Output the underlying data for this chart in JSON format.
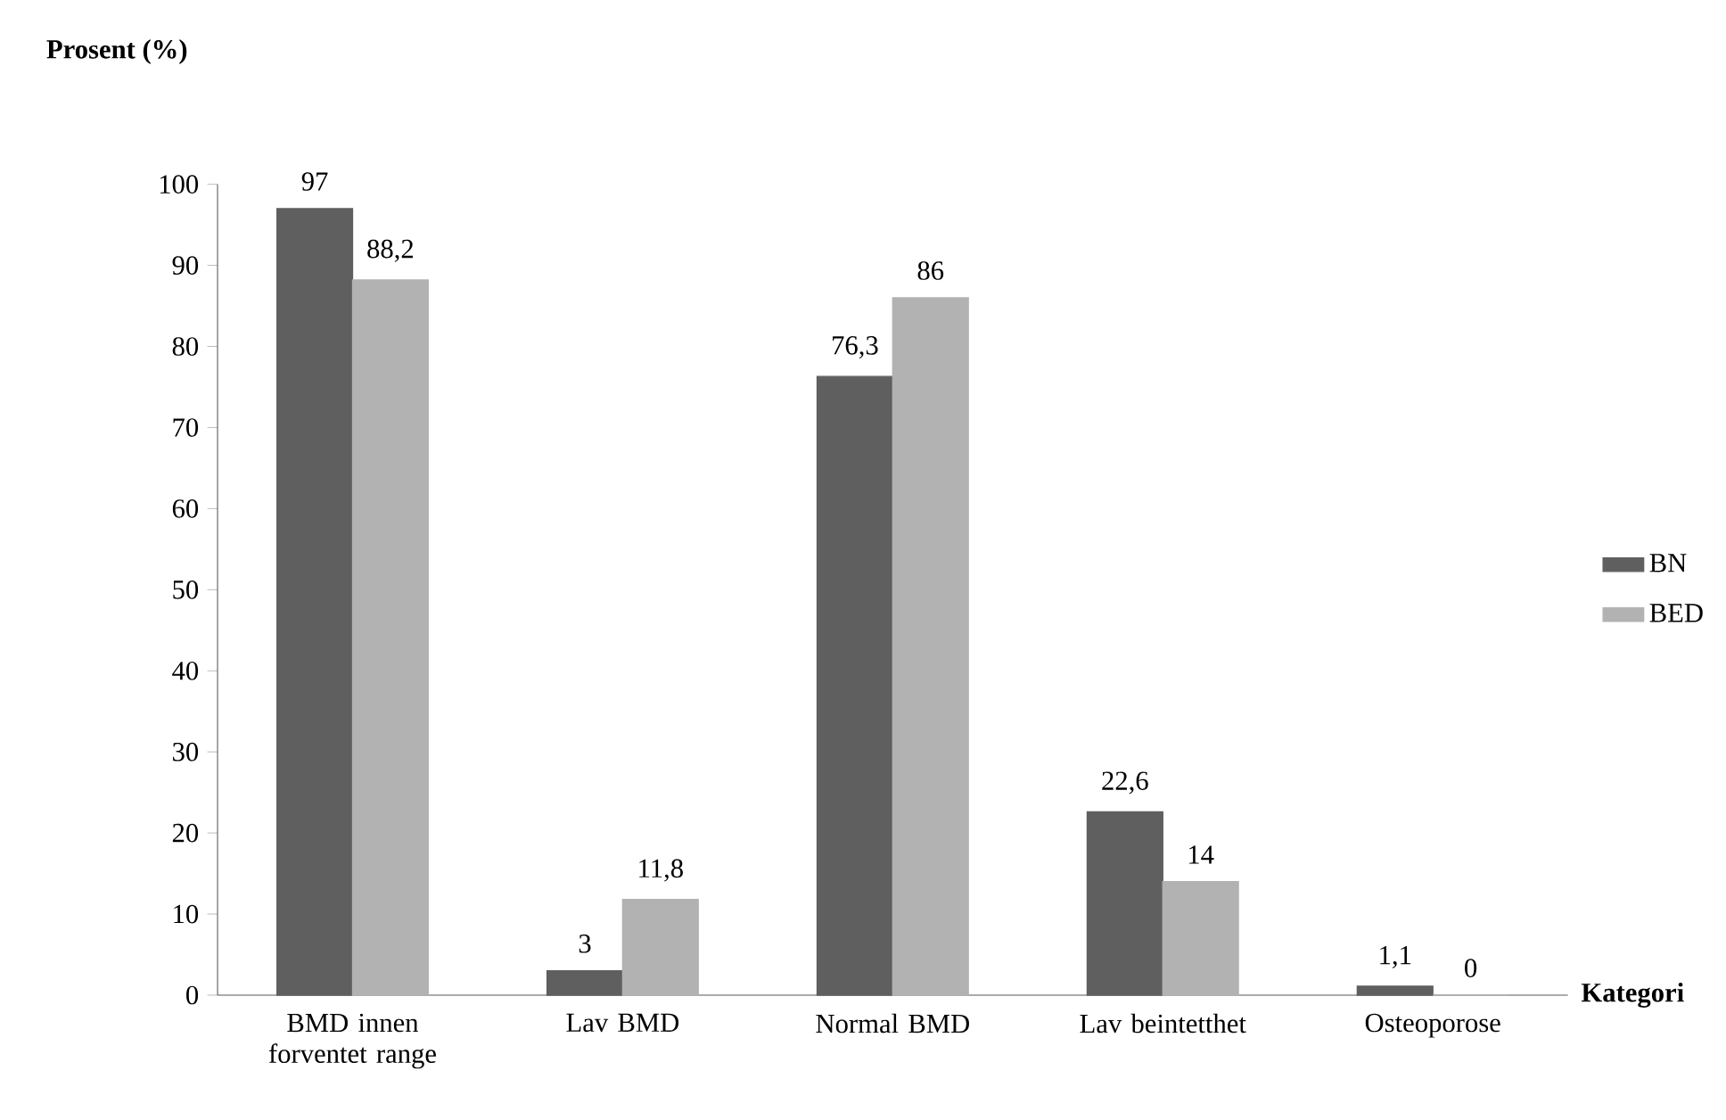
{
  "chart_data": {
    "type": "bar",
    "ylabel": "Prosent (%)",
    "xlabel": "Kategori",
    "categories": [
      "BMD innen forventet range",
      "Lav BMD",
      "Normal BMD",
      "Lav beintetthet",
      "Osteoporose"
    ],
    "series": [
      {
        "name": "BN",
        "color": "#5f5f5f",
        "values": [
          97,
          3,
          76.3,
          22.6,
          1.1
        ],
        "value_labels": [
          "97",
          "3",
          "76,3",
          "22,6",
          "1,1"
        ]
      },
      {
        "name": "BED",
        "color": "#b2b2b2",
        "values": [
          88.2,
          11.8,
          86,
          14,
          0
        ],
        "value_labels": [
          "88,2",
          "11,8",
          "86",
          "14",
          "0"
        ]
      }
    ],
    "ylim": [
      0,
      100
    ],
    "yticks": [
      0,
      10,
      20,
      30,
      40,
      50,
      60,
      70,
      80,
      90,
      100
    ],
    "legend": "right",
    "grid": false
  }
}
